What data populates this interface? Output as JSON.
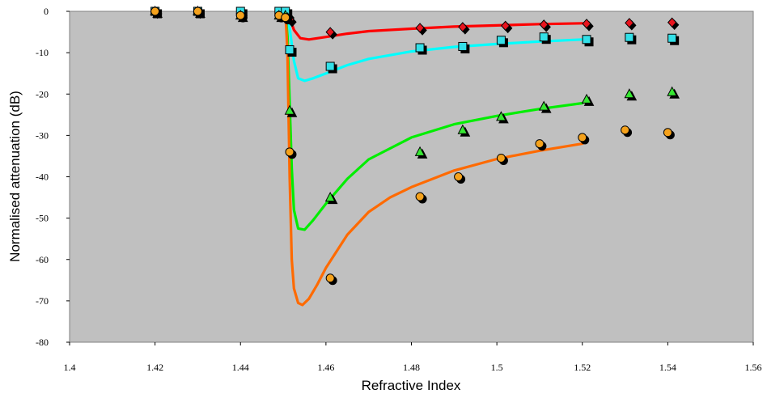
{
  "chart_data": {
    "type": "scatter",
    "title": "",
    "xlabel": "Refractive Index",
    "ylabel": "Normalised attenuation (dB)",
    "xlim": [
      1.4,
      1.56
    ],
    "ylim": [
      -80,
      0
    ],
    "x_ticks": [
      "1.4",
      "1.42",
      "1.44",
      "1.46",
      "1.48",
      "1.5",
      "1.52",
      "1.54",
      "1.56"
    ],
    "y_ticks": [
      "0",
      "-10",
      "-20",
      "-30",
      "-40",
      "-50",
      "-60",
      "-70",
      "-80"
    ],
    "plot_background": "#c0c0c0",
    "grid": false,
    "legend": "none",
    "series": [
      {
        "kind": "markers",
        "marker": "diamond",
        "color": "#e8141e",
        "shadow": "#000000",
        "points": [
          [
            1.42,
            0
          ],
          [
            1.43,
            0
          ],
          [
            1.44,
            -0.5
          ],
          [
            1.45,
            -0.5
          ],
          [
            1.451,
            -1
          ],
          [
            1.4515,
            -2
          ],
          [
            1.461,
            -5
          ],
          [
            1.482,
            -4
          ],
          [
            1.492,
            -3.8
          ],
          [
            1.502,
            -3.5
          ],
          [
            1.511,
            -3.2
          ],
          [
            1.521,
            -3
          ],
          [
            1.531,
            -2.8
          ],
          [
            1.541,
            -2.7
          ]
        ]
      },
      {
        "kind": "markers",
        "marker": "square",
        "color": "#33e0e8",
        "shadow": "#000000",
        "points": [
          [
            1.42,
            0
          ],
          [
            1.43,
            0
          ],
          [
            1.44,
            0
          ],
          [
            1.449,
            0
          ],
          [
            1.4505,
            0
          ],
          [
            1.4515,
            -9.3
          ],
          [
            1.461,
            -13.3
          ],
          [
            1.482,
            -8.8
          ],
          [
            1.492,
            -8.5
          ],
          [
            1.501,
            -7
          ],
          [
            1.511,
            -6.2
          ],
          [
            1.521,
            -6.8
          ],
          [
            1.531,
            -6.3
          ],
          [
            1.541,
            -6.5
          ]
        ]
      },
      {
        "kind": "markers",
        "marker": "triangle",
        "color": "#36e832",
        "shadow": "#000000",
        "points": [
          [
            1.42,
            0
          ],
          [
            1.43,
            0
          ],
          [
            1.44,
            -1
          ],
          [
            1.449,
            -1
          ],
          [
            1.4505,
            -1
          ],
          [
            1.4515,
            -24
          ],
          [
            1.461,
            -45
          ],
          [
            1.482,
            -34
          ],
          [
            1.492,
            -28.7
          ],
          [
            1.501,
            -25.5
          ],
          [
            1.511,
            -23
          ],
          [
            1.521,
            -21.3
          ],
          [
            1.531,
            -20
          ],
          [
            1.541,
            -19.5
          ]
        ]
      },
      {
        "kind": "markers",
        "marker": "circle",
        "color": "#f5a21c",
        "shadow": "#000000",
        "points": [
          [
            1.42,
            0
          ],
          [
            1.43,
            0
          ],
          [
            1.44,
            -1
          ],
          [
            1.449,
            -1
          ],
          [
            1.4505,
            -1.5
          ],
          [
            1.4515,
            -34
          ],
          [
            1.461,
            -64.5
          ],
          [
            1.482,
            -44.8
          ],
          [
            1.491,
            -40
          ],
          [
            1.501,
            -35.5
          ],
          [
            1.51,
            -32
          ],
          [
            1.52,
            -30.5
          ],
          [
            1.53,
            -28.7
          ],
          [
            1.54,
            -29.3
          ]
        ]
      },
      {
        "kind": "curve",
        "color": "#ff0000",
        "points": [
          [
            1.4505,
            0
          ],
          [
            1.4515,
            -1.5
          ],
          [
            1.4525,
            -4.5
          ],
          [
            1.454,
            -6.5
          ],
          [
            1.456,
            -6.8
          ],
          [
            1.46,
            -6.2
          ],
          [
            1.465,
            -5.4
          ],
          [
            1.47,
            -4.8
          ],
          [
            1.48,
            -4.2
          ],
          [
            1.49,
            -3.7
          ],
          [
            1.5,
            -3.4
          ],
          [
            1.51,
            -3.1
          ],
          [
            1.52,
            -2.9
          ]
        ]
      },
      {
        "kind": "curve",
        "color": "#00ffff",
        "points": [
          [
            1.4505,
            0
          ],
          [
            1.4515,
            -4
          ],
          [
            1.4525,
            -12
          ],
          [
            1.4535,
            -16.2
          ],
          [
            1.455,
            -16.8
          ],
          [
            1.457,
            -16.2
          ],
          [
            1.46,
            -15
          ],
          [
            1.465,
            -13
          ],
          [
            1.47,
            -11.5
          ],
          [
            1.48,
            -9.7
          ],
          [
            1.49,
            -8.6
          ],
          [
            1.5,
            -7.9
          ],
          [
            1.51,
            -7.3
          ],
          [
            1.52,
            -6.8
          ]
        ]
      },
      {
        "kind": "curve",
        "color": "#00ee00",
        "points": [
          [
            1.4505,
            0
          ],
          [
            1.451,
            -6
          ],
          [
            1.4515,
            -22
          ],
          [
            1.452,
            -38
          ],
          [
            1.4525,
            -48
          ],
          [
            1.4535,
            -52.5
          ],
          [
            1.455,
            -52.8
          ],
          [
            1.457,
            -50.5
          ],
          [
            1.46,
            -46.5
          ],
          [
            1.465,
            -40.5
          ],
          [
            1.47,
            -35.8
          ],
          [
            1.48,
            -30.5
          ],
          [
            1.49,
            -27.3
          ],
          [
            1.5,
            -25.3
          ],
          [
            1.51,
            -23.6
          ],
          [
            1.52,
            -22.2
          ]
        ]
      },
      {
        "kind": "curve",
        "color": "#ff6a00",
        "points": [
          [
            1.4505,
            0
          ],
          [
            1.451,
            -10
          ],
          [
            1.4515,
            -40
          ],
          [
            1.452,
            -60
          ],
          [
            1.4525,
            -67
          ],
          [
            1.4535,
            -70.5
          ],
          [
            1.4545,
            -71
          ],
          [
            1.456,
            -69.5
          ],
          [
            1.458,
            -66
          ],
          [
            1.46,
            -62
          ],
          [
            1.465,
            -54
          ],
          [
            1.47,
            -48.5
          ],
          [
            1.475,
            -45
          ],
          [
            1.48,
            -42.5
          ],
          [
            1.49,
            -38.5
          ],
          [
            1.5,
            -35.7
          ],
          [
            1.51,
            -33.7
          ],
          [
            1.52,
            -32
          ]
        ]
      }
    ]
  }
}
